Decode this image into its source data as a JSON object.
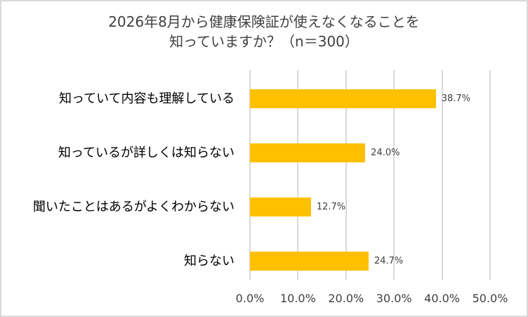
{
  "chart_data": {
    "type": "bar",
    "orientation": "horizontal",
    "title": "2026年8月から健康保険証が使えなくなることを知っていますか？（n＝300）",
    "title_lines": [
      "2026年8月から健康保険証が使えなくなることを",
      "知っていますか？（n＝300）"
    ],
    "categories": [
      "知っていて内容も理解している",
      "知っているが詳しくは知らない",
      "聞いたことはあるがよくわからない",
      "知らない"
    ],
    "values": [
      38.7,
      24.0,
      12.7,
      24.7
    ],
    "value_labels": [
      "38.7%",
      "24.0%",
      "12.7%",
      "24.7%"
    ],
    "xlabel": "",
    "ylabel": "",
    "xlim": [
      0,
      50
    ],
    "x_ticks": [
      0,
      10,
      20,
      30,
      40,
      50
    ],
    "x_tick_labels": [
      "0.0%",
      "10.0%",
      "20.0%",
      "30.0%",
      "40.0%",
      "50.0%"
    ],
    "grid": true,
    "legend": false,
    "bar_color": "#FFC000"
  },
  "colors": {
    "bar": "#FFC000",
    "grid": "#D9D9D9",
    "border": "#D9D9D9",
    "text": "#404040"
  }
}
